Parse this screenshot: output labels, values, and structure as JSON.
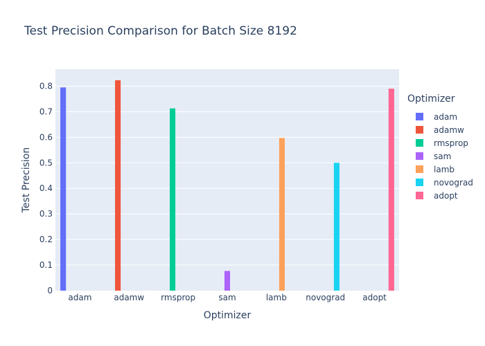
{
  "chart_data": {
    "type": "bar",
    "title": "Test Precision Comparison for Batch Size 8192",
    "xlabel": "Optimizer",
    "ylabel": "Test Precision",
    "categories": [
      "adam",
      "adamw",
      "rmsprop",
      "sam",
      "lamb",
      "novograd",
      "adopt"
    ],
    "series": [
      {
        "name": "adam",
        "color": "#636efa",
        "values": [
          0.795,
          null,
          null,
          null,
          null,
          null,
          null
        ]
      },
      {
        "name": "adamw",
        "color": "#ef553b",
        "values": [
          null,
          0.823,
          null,
          null,
          null,
          null,
          null
        ]
      },
      {
        "name": "rmsprop",
        "color": "#00cc96",
        "values": [
          null,
          null,
          0.713,
          null,
          null,
          null,
          null
        ]
      },
      {
        "name": "sam",
        "color": "#ab63fa",
        "values": [
          null,
          null,
          null,
          0.077,
          null,
          null,
          null
        ]
      },
      {
        "name": "lamb",
        "color": "#ffa15a",
        "values": [
          null,
          null,
          null,
          null,
          0.597,
          null,
          null
        ]
      },
      {
        "name": "novograd",
        "color": "#19d3f3",
        "values": [
          null,
          null,
          null,
          null,
          null,
          0.5,
          null
        ]
      },
      {
        "name": "adopt",
        "color": "#ff6692",
        "values": [
          null,
          null,
          null,
          null,
          null,
          null,
          0.79
        ]
      }
    ],
    "ylim": [
      0,
      0.8663
    ],
    "yticks": [
      "0",
      "0.1",
      "0.2",
      "0.3",
      "0.4",
      "0.5",
      "0.6",
      "0.7",
      "0.8"
    ],
    "grid": true,
    "legend": {
      "title": "Optimizer",
      "placement": "right"
    }
  }
}
